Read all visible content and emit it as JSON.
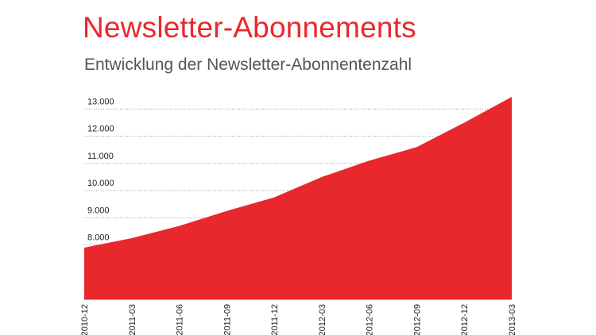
{
  "chart_data": {
    "type": "area",
    "title": "Newsletter-Abonnements",
    "subtitle": "Entwicklung der Newsletter-Abonnentenzahl",
    "xlabel": "",
    "ylabel": "",
    "categories": [
      "2010-12",
      "2011-03",
      "2011-06",
      "2011-09",
      "2011-12",
      "2012-03",
      "2012-06",
      "2012-09",
      "2012-12",
      "2013-03"
    ],
    "series": [
      {
        "values": [
          7900,
          8250,
          8700,
          9250,
          9750,
          10500,
          11100,
          11600,
          12500,
          13450
        ]
      }
    ],
    "ylim": [
      6000,
      13800
    ],
    "yticks": [
      8000,
      9000,
      10000,
      11000,
      12000,
      13000
    ],
    "ytick_labels": [
      "8.000",
      "9.000",
      "10.000",
      "11.000",
      "12.000",
      "13.000"
    ],
    "xtick_labels": [
      "2010-12",
      "2011-03",
      "2011-06",
      "2011-09",
      "2011-12",
      "2012-03",
      "2012-06",
      "2012-09",
      "2012-12",
      "2013-03"
    ],
    "grid": true,
    "grid_style": "dotted",
    "legend": "none",
    "fill_color": "#e8282d",
    "grid_color": "#999999",
    "text_color": "#222222"
  }
}
